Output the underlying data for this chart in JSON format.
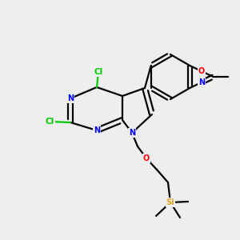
{
  "bg_color": "#eeeeee",
  "bond_color": "#000000",
  "N_color": "#0000FF",
  "O_color": "#FF0000",
  "Cl_color": "#00CC00",
  "Si_color": "#DAA520",
  "C_color": "#000000",
  "font_size": 7.5,
  "lw": 1.4
}
